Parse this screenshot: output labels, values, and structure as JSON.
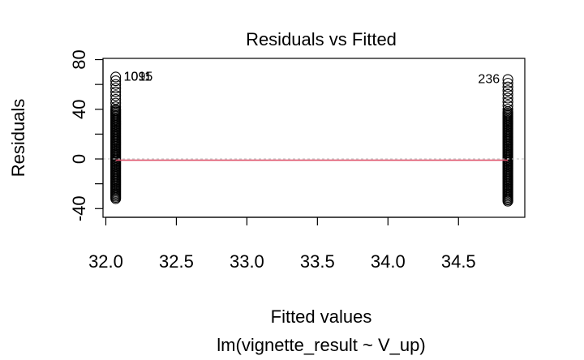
{
  "chart_data": {
    "type": "scatter",
    "title": "Residuals vs Fitted",
    "xlabel": "Fitted values",
    "subtitle": "lm(vignette_result ~ V_up)",
    "ylabel": "Residuals",
    "xlim": [
      31.98,
      34.97
    ],
    "ylim": [
      -47,
      81
    ],
    "x_ticks": [
      32.0,
      32.5,
      33.0,
      33.5,
      34.0,
      34.5
    ],
    "x_tick_labels": [
      "32.0",
      "32.5",
      "33.0",
      "33.5",
      "34.0",
      "34.5"
    ],
    "y_ticks": [
      -40,
      -20,
      0,
      20,
      40,
      60,
      80
    ],
    "y_tick_labels": [
      "-40",
      "",
      "0",
      "",
      "40",
      "",
      "80"
    ],
    "groups": [
      {
        "fitted": 32.07,
        "residual_min": -32,
        "residual_max": 68,
        "dense_min": -32,
        "dense_max": 40
      },
      {
        "fitted": 34.85,
        "residual_min": -34,
        "residual_max": 66,
        "dense_min": -34,
        "dense_max": 38
      }
    ],
    "point_labels": [
      {
        "text": "1095",
        "x": 32.07,
        "y": 67
      },
      {
        "text": "1011",
        "x": 32.07,
        "y": 67
      },
      {
        "text": "236",
        "x": 34.85,
        "y": 65
      }
    ],
    "reference_line_y": 0,
    "smooth_line_color": "#DF536B",
    "reference_line_color": "#BEBEBE"
  }
}
